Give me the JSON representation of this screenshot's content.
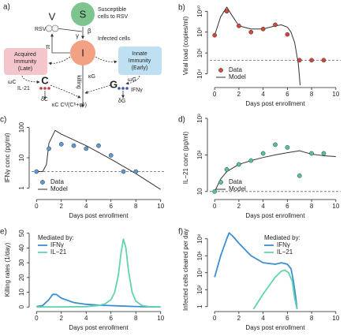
{
  "diagram": {
    "panel_label": "a)",
    "s_node": {
      "label": "S",
      "caption": [
        "Susceptible",
        "cells to RSV"
      ]
    },
    "v_node": {
      "label": "V",
      "caption": "RSV"
    },
    "i_node": {
      "label": "I",
      "caption": "Infected cells"
    },
    "rates": {
      "beta": "β",
      "gamma": "γ",
      "pi": "π",
      "kappa_g": "κG",
      "killing": "killing",
      "kappa_c": "κC Cʰ/(Cʰ+φʰ)"
    },
    "acquired": [
      "Acquired",
      "Immunity",
      "(Late)"
    ],
    "innate": [
      "Innate",
      "Immunity",
      "(Early)"
    ],
    "c_node": {
      "label": "C",
      "cytokine": "IL-21",
      "omega": "ωC",
      "delta": "δC"
    },
    "g_node": {
      "label": "G",
      "cytokine": "IFNγ",
      "omega": "ωG",
      "delta": "δG"
    }
  },
  "chart_data": [
    {
      "type": "line",
      "panel_label": "b)",
      "xlabel": "Days post enrollment",
      "ylabel": "Viral load (copies/ml)",
      "log_y": true,
      "xlim": [
        -0.4,
        10.4
      ],
      "xticks": [
        0,
        2,
        4,
        6,
        8,
        10
      ],
      "ylim": [
        800,
        30000000000
      ],
      "yticks": [
        {
          "value": 10000,
          "label": "10⁴"
        },
        {
          "value": 1000000,
          "label": "10⁶"
        },
        {
          "value": 100000000,
          "label": "10⁸"
        },
        {
          "value": 10000000000,
          "label": "10¹⁰"
        }
      ],
      "reference_line": 200000,
      "legend": "bottom-left",
      "series": [
        {
          "name": "Data",
          "mode": "markers",
          "color": "#d2473c",
          "x": [
            0,
            1,
            2,
            3,
            4,
            5,
            6,
            7,
            8,
            9
          ],
          "values": [
            50000000,
            10000000000,
            400000000,
            100000000,
            200000000,
            500000000,
            60000000,
            200000,
            200000,
            200000
          ]
        },
        {
          "name": "Model",
          "mode": "lines",
          "color": "#333333",
          "x": [
            0,
            0.5,
            1,
            1.5,
            2,
            3,
            4,
            5,
            5.5,
            6,
            6.3,
            6.6,
            6.9,
            7.05,
            7.2
          ],
          "values": [
            50000000,
            3000000000,
            25000000000,
            3000000000,
            400000000,
            200000000,
            200000000,
            400000000,
            500000000,
            300000000,
            100000000,
            10000000,
            100000,
            1000,
            10
          ]
        }
      ]
    },
    {
      "type": "line",
      "panel_label": "c)",
      "xlabel": "Days post enrollment",
      "ylabel": "IFNγ conc (pg/ml)",
      "log_y": true,
      "xlim": [
        -0.4,
        10.4
      ],
      "xticks": [
        0,
        2,
        4,
        6,
        8,
        10
      ],
      "ylim": [
        0.5,
        200
      ],
      "yticks": [
        1,
        10,
        100
      ],
      "reference_line": 3.5,
      "legend": "bottom-left",
      "series": [
        {
          "name": "Data",
          "mode": "markers",
          "color": "#5b9bd5",
          "x": [
            0,
            1,
            2,
            3,
            4,
            5,
            6,
            7,
            8
          ],
          "values": [
            3.5,
            20,
            28,
            25,
            20,
            25,
            12,
            3.5,
            3.5
          ]
        },
        {
          "name": "Model",
          "mode": "lines",
          "color": "#333333",
          "x": [
            0,
            0.5,
            0.8,
            1,
            1.5,
            2,
            4,
            6,
            8,
            10
          ],
          "values": [
            3.5,
            3.5,
            6,
            30,
            80,
            60,
            25,
            9,
            3,
            0.9
          ]
        }
      ]
    },
    {
      "type": "line",
      "panel_label": "d)",
      "xlabel": "Days post enrollment",
      "ylabel": "IL−21 conc (pg/ml)",
      "log_y": true,
      "xlim": [
        -0.4,
        10.4
      ],
      "xticks": [
        0,
        2,
        4,
        6,
        8,
        10
      ],
      "ylim": [
        7,
        1000
      ],
      "yticks": [
        10,
        {
          "value": 100,
          "label": "10²"
        },
        {
          "value": 1000,
          "label": "10³"
        }
      ],
      "reference_line": 10,
      "legend": "bottom-left",
      "series": [
        {
          "name": "Data",
          "mode": "markers",
          "color": "#52c3a3",
          "x": [
            0,
            1,
            2,
            3,
            4,
            5,
            6,
            7,
            8,
            9
          ],
          "values": [
            10,
            40,
            55,
            70,
            110,
            190,
            160,
            27,
            110,
            110
          ]
        },
        {
          "name": "Model",
          "mode": "lines",
          "color": "#333333",
          "x": [
            0,
            0.5,
            1,
            2,
            3,
            4,
            5,
            6,
            7,
            8,
            9,
            10
          ],
          "values": [
            10,
            22,
            35,
            55,
            70,
            85,
            100,
            115,
            130,
            105,
            95,
            90
          ]
        }
      ]
    },
    {
      "type": "line",
      "panel_label": "e)",
      "xlabel": "Days post enrollment",
      "ylabel": "Killing rates (1/day)",
      "log_y": false,
      "xlim": [
        -0.4,
        10.4
      ],
      "xticks": [
        0,
        2,
        4,
        6,
        8,
        10
      ],
      "ylim": [
        -1.5,
        52
      ],
      "yticks": [
        0,
        10,
        20,
        30,
        40,
        50
      ],
      "legend": "top-left",
      "legend_title": "Mediated by:",
      "series": [
        {
          "name": "IFNγ",
          "mode": "lines",
          "color": "#3b8fd0",
          "x": [
            0,
            0.5,
            1,
            1.3,
            1.6,
            2,
            3,
            4,
            5,
            6,
            7,
            8,
            9,
            10
          ],
          "values": [
            0.3,
            1,
            5,
            8.5,
            8.5,
            6,
            3,
            1.8,
            1.2,
            0.9,
            0.6,
            0.3,
            0.1,
            0
          ]
        },
        {
          "name": "IL−21",
          "mode": "lines",
          "color": "#62d3b1",
          "x": [
            0,
            2,
            4,
            5,
            5.5,
            6,
            6.3,
            6.6,
            6.8,
            7,
            7.2,
            7.4,
            7.7,
            8,
            8.5,
            9,
            10
          ],
          "values": [
            0,
            0,
            0.2,
            1,
            2,
            5,
            10,
            22,
            36,
            46,
            40,
            25,
            10,
            4,
            1,
            0.3,
            0
          ]
        }
      ]
    },
    {
      "type": "line",
      "panel_label": "f)",
      "xlabel": "Days post enrollment",
      "ylabel": "Infected cells cleared per day",
      "log_y": true,
      "xlim": [
        -0.4,
        10.4
      ],
      "xticks": [
        0,
        2,
        4,
        6,
        8,
        10
      ],
      "ylim": [
        0.5,
        1000000000
      ],
      "yticks": [
        1,
        {
          "value": 100,
          "label": "10²"
        },
        {
          "value": 10000,
          "label": "10⁴"
        },
        {
          "value": 1000000,
          "label": "10⁶"
        },
        {
          "value": 100000000,
          "label": "10⁸"
        }
      ],
      "legend": "top-center",
      "legend_title": "Mediated by:",
      "series": [
        {
          "name": "IFNγ",
          "mode": "lines",
          "color": "#3b8fd0",
          "x": [
            0,
            0.5,
            1,
            1.2,
            1.5,
            2,
            3,
            4,
            5,
            5.5,
            6,
            6.3,
            6.5,
            6.7,
            6.8
          ],
          "values": [
            3000,
            1000000,
            100000000,
            500000000,
            200000000,
            30000000,
            1000000,
            150000,
            100000,
            150000,
            100000,
            30000,
            1000,
            10,
            0.5
          ]
        },
        {
          "name": "IL−21",
          "mode": "lines",
          "color": "#62d3b1",
          "x": [
            3.2,
            4,
            4.5,
            5,
            5.5,
            5.8,
            6.1,
            6.4,
            6.6,
            6.8
          ],
          "values": [
            0.5,
            30,
            300,
            3000,
            15000,
            20000,
            10000,
            1000,
            10,
            0.5
          ]
        }
      ]
    }
  ]
}
